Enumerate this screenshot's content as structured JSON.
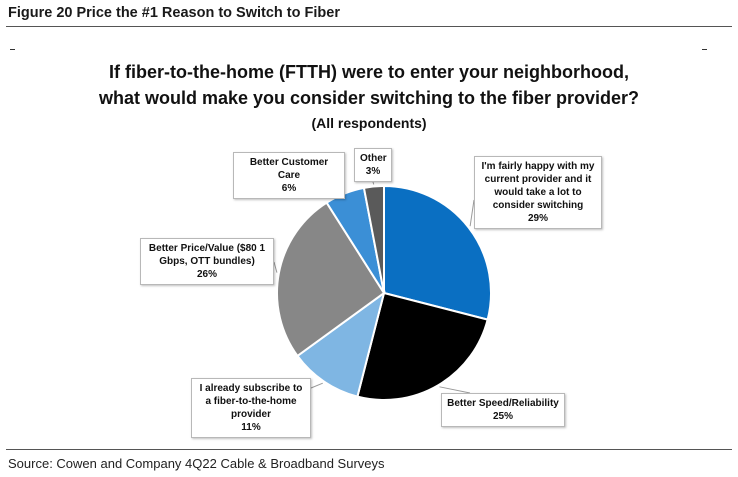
{
  "figure_title": "Figure 20 Price the #1 Reason to Switch to Fiber",
  "source": "Source: Cowen and Company 4Q22 Cable & Broadband Surveys",
  "chart_data": {
    "type": "pie",
    "title_line1": "If fiber-to-the-home (FTTH) were to enter your neighborhood,",
    "title_line2": "what would make you consider switching to the fiber provider?",
    "subtitle": "(All respondents)",
    "slices": [
      {
        "label": "I'm fairly happy with my current provider and it would take a lot to consider switching",
        "value": 29,
        "value_label": "29%",
        "color": "#0a6fc2"
      },
      {
        "label": "Better Speed/Reliability",
        "value": 25,
        "value_label": "25%",
        "color": "#000000"
      },
      {
        "label": "I already subscribe to a fiber-to-the-home provider",
        "value": 11,
        "value_label": "11%",
        "color": "#7fb6e3"
      },
      {
        "label": "Better Price/Value ($80 1 Gbps, OTT bundles)",
        "value": 26,
        "value_label": "26%",
        "color": "#878787"
      },
      {
        "label": "Better Customer Care",
        "value": 6,
        "value_label": "6%",
        "color": "#3b8fd6"
      },
      {
        "label": "Other",
        "value": 3,
        "value_label": "3%",
        "color": "#5a5a5a"
      }
    ]
  }
}
